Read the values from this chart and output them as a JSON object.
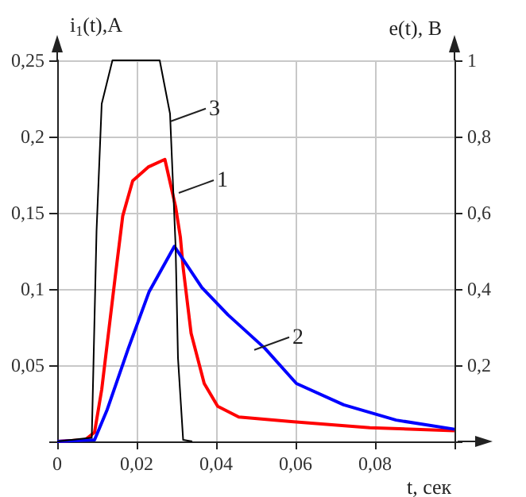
{
  "chart_data": {
    "type": "line",
    "xlabel": "t, сек",
    "ylabel": "i$_{1}$(t),А",
    "y2label": "e(t), В",
    "xlim": [
      0,
      0.1
    ],
    "xticks": [
      {
        "value": 0,
        "label": "0"
      },
      {
        "value": 0.02,
        "label": "0,02"
      },
      {
        "value": 0.04,
        "label": "0,04"
      },
      {
        "value": 0.06,
        "label": "0,06"
      },
      {
        "value": 0.08,
        "label": "0,08"
      },
      {
        "value": 0.1,
        "label": null
      }
    ],
    "ylim": [
      0,
      0.25
    ],
    "yticks": [
      {
        "value": 0,
        "label": null
      },
      {
        "value": 0.05,
        "label": "0,05"
      },
      {
        "value": 0.1,
        "label": "0,1"
      },
      {
        "value": 0.15,
        "label": "0,15"
      },
      {
        "value": 0.2,
        "label": "0,2"
      },
      {
        "value": 0.25,
        "label": "0,25"
      }
    ],
    "y2lim": [
      0,
      1
    ],
    "y2ticks": [
      {
        "value": 0,
        "label": null
      },
      {
        "value": 0.2,
        "label": "0,2"
      },
      {
        "value": 0.4,
        "label": "0,4"
      },
      {
        "value": 0.6,
        "label": "0,6"
      },
      {
        "value": 0.8,
        "label": "0,8"
      },
      {
        "value": 1,
        "label": "1"
      }
    ],
    "grid": true,
    "marker": "none",
    "line_style": "solid",
    "series": [
      {
        "color": "#ff0000",
        "x": [
          0,
          0.007,
          0.0094,
          0.0112,
          0.0146,
          0.0165,
          0.019,
          0.0229,
          0.0271,
          0.0298,
          0.031,
          0.0317,
          0.0337,
          0.037,
          0.0404,
          0.0457,
          0.0589,
          0.0787,
          0.1
        ],
        "values": [
          0,
          0.001,
          0.006,
          0.034,
          0.108,
          0.148,
          0.171,
          0.18,
          0.185,
          0.154,
          0.134,
          0.114,
          0.071,
          0.038,
          0.023,
          0.016,
          0.013,
          0.009,
          0.007
        ]
      },
      {
        "color": "#0000ff",
        "x": [
          0,
          0.0094,
          0.0126,
          0.0179,
          0.0231,
          0.0295,
          0.0364,
          0.043,
          0.0523,
          0.0602,
          0.0721,
          0.0853,
          0.1
        ],
        "values": [
          0,
          0.001,
          0.021,
          0.061,
          0.098,
          0.128,
          0.101,
          0.083,
          0.061,
          0.038,
          0.024,
          0.014,
          0.008
        ]
      },
      {
        "color": "#000000",
        "axis": "y2",
        "x": [
          0,
          0.0087,
          0.0099,
          0.0112,
          0.0139,
          0.0258,
          0.0284,
          0.0291,
          0.0298,
          0.0304,
          0.0317,
          0.034
        ],
        "values": [
          0,
          0.01,
          0.552,
          0.886,
          1,
          1,
          0.86,
          0.686,
          0.512,
          0.219,
          0.004,
          0
        ]
      }
    ],
    "annotations": [
      {
        "text": "1",
        "x": 0.0306,
        "y": 0.163
      },
      {
        "text": "2",
        "x": 0.0496,
        "y": 0.06
      },
      {
        "text": "3",
        "x": 0.0286,
        "y": 0.21
      }
    ]
  }
}
